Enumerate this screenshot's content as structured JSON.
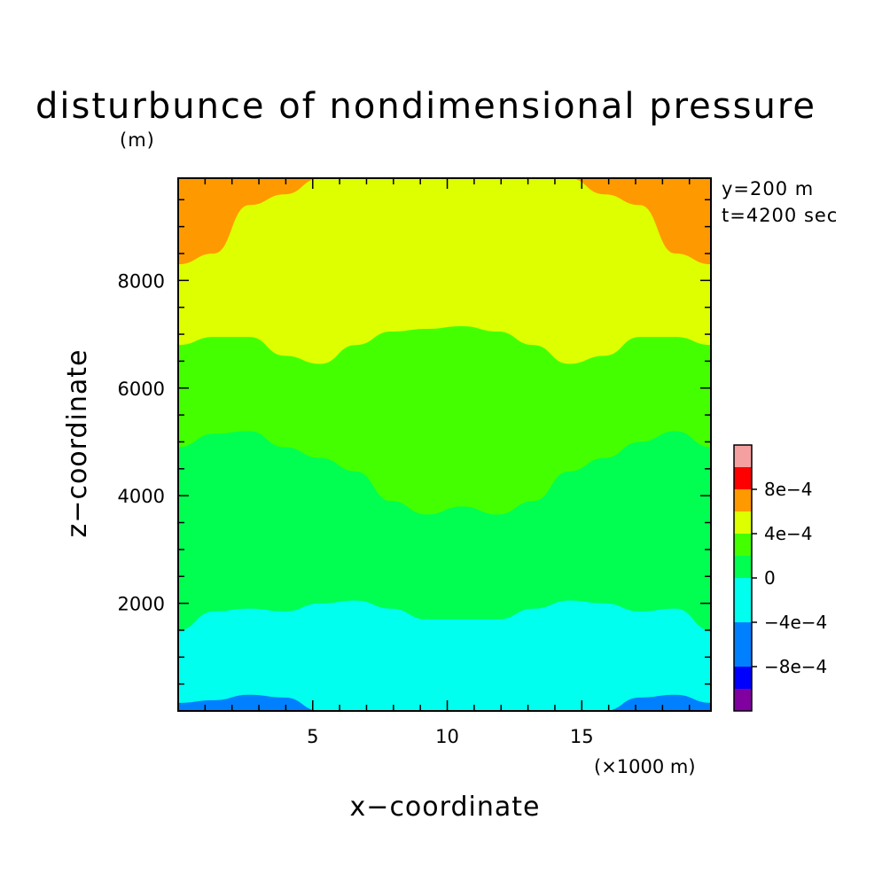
{
  "chart_data": {
    "type": "heatmap",
    "title": "disturbunce of nondimensional pressure",
    "ylabel_unit": "(m)",
    "xlabel": "x−coordinate",
    "ylabel": "z−coordinate",
    "xunit": "(×1000 m)",
    "info_lines": [
      "y=200 m",
      "t=4200 sec"
    ],
    "xlim": [
      0,
      19.8
    ],
    "ylim": [
      0,
      9900
    ],
    "xticks": [
      {
        "value": 5,
        "label": "5"
      },
      {
        "value": 10,
        "label": "10"
      },
      {
        "value": 15,
        "label": "15"
      }
    ],
    "yticks": [
      {
        "value": 2000,
        "label": "2000"
      },
      {
        "value": 4000,
        "label": "4000"
      },
      {
        "value": 6000,
        "label": "6000"
      },
      {
        "value": 8000,
        "label": "8000"
      }
    ],
    "colorbar": {
      "levels": [
        "-12e-4",
        "-8e-4",
        "-4e-4",
        "0",
        "4e-4",
        "8e-4",
        "12e-4"
      ],
      "bins": [
        {
          "from": -0.0012,
          "to": -0.001,
          "color": "#8000a0"
        },
        {
          "from": -0.001,
          "to": -0.0008,
          "color": "#0000ff"
        },
        {
          "from": -0.0008,
          "to": -0.0004,
          "color": "#0080ff"
        },
        {
          "from": -0.0004,
          "to": 0,
          "color": "#00ffee"
        },
        {
          "from": 0,
          "to": 0.0002,
          "color": "#00ff50"
        },
        {
          "from": 0.0002,
          "to": 0.0004,
          "color": "#44ff00"
        },
        {
          "from": 0.0004,
          "to": 0.0006,
          "color": "#ddff00"
        },
        {
          "from": 0.0006,
          "to": 0.0008,
          "color": "#ff9900"
        },
        {
          "from": 0.0008,
          "to": 0.001,
          "color": "#ff0000"
        },
        {
          "from": 0.001,
          "to": 0.0012,
          "color": "#f5a0a0"
        }
      ],
      "labels": [
        {
          "value": 0.0008,
          "label": "8e−4"
        },
        {
          "value": 0.0004,
          "label": "4e−4"
        },
        {
          "value": 0,
          "label": "0"
        },
        {
          "value": -0.0004,
          "label": "−4e−4"
        },
        {
          "value": -0.0008,
          "label": "−8e−4"
        }
      ]
    },
    "contour_bands": [
      {
        "name": "orange-top",
        "color": "#ff9900",
        "boundary_z": [
          8300,
          8500,
          9400,
          9600,
          9900,
          9900,
          9900,
          9900,
          9900,
          9900,
          9900,
          9900,
          9600,
          9400,
          8500,
          8300
        ]
      },
      {
        "name": "yellow",
        "color": "#ddff00",
        "boundary_z": [
          6800,
          6950,
          6950,
          6600,
          6450,
          6800,
          7050,
          7100,
          7150,
          7050,
          6800,
          6450,
          6600,
          6950,
          6950,
          6800
        ]
      },
      {
        "name": "lime",
        "color": "#44ff00",
        "boundary_z": [
          4900,
          5150,
          5200,
          4900,
          4700,
          4450,
          3900,
          3650,
          3800,
          3650,
          3900,
          4450,
          4700,
          5000,
          5200,
          4900
        ]
      },
      {
        "name": "green",
        "color": "#00ff50",
        "boundary_z": [
          1500,
          1850,
          1900,
          1850,
          2000,
          2050,
          1900,
          1700,
          1700,
          1700,
          1900,
          2050,
          2000,
          1850,
          1900,
          1500
        ]
      },
      {
        "name": "cyan",
        "color": "#00ffee",
        "boundary_z": [
          150,
          200,
          300,
          250,
          0,
          0,
          0,
          0,
          0,
          0,
          0,
          0,
          0,
          250,
          300,
          150
        ]
      },
      {
        "name": "blue-bottom",
        "color": "#0080ff",
        "boundary_z": [
          0,
          0,
          0,
          0,
          0,
          0,
          0,
          0,
          0,
          0,
          0,
          0,
          0,
          0,
          0,
          0
        ]
      }
    ],
    "contour_x": [
      0,
      1.32,
      2.64,
      3.96,
      5.28,
      6.6,
      7.92,
      9.24,
      10.56,
      11.88,
      13.2,
      14.52,
      15.84,
      17.16,
      18.48,
      19.8
    ]
  }
}
